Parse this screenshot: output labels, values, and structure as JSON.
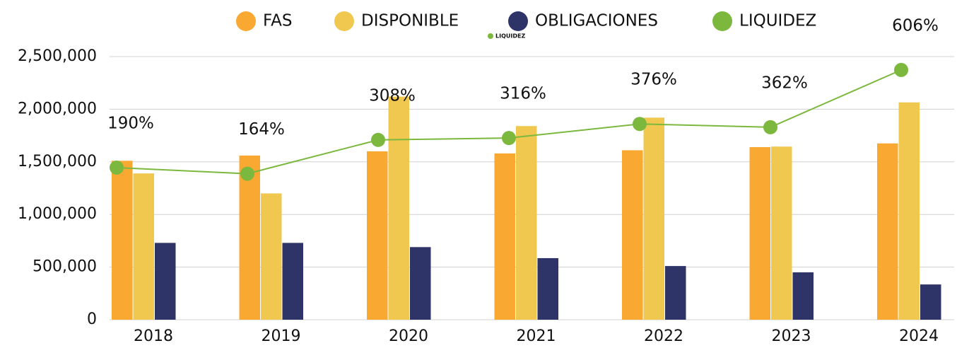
{
  "chart_data": {
    "type": "bar",
    "categories": [
      "2018",
      "2019",
      "2020",
      "2021",
      "2022",
      "2023",
      "2024"
    ],
    "series": [
      {
        "name": "FAS",
        "color": "#f9a831",
        "values": [
          1510000,
          1560000,
          1600000,
          1580000,
          1610000,
          1640000,
          1675000
        ]
      },
      {
        "name": "DISPONIBLE",
        "color": "#f0c850",
        "values": [
          1390000,
          1200000,
          2120000,
          1840000,
          1920000,
          1645000,
          2065000
        ]
      },
      {
        "name": "OBLIGACIONES",
        "color": "#2f3468",
        "values": [
          730000,
          730000,
          690000,
          585000,
          510000,
          450000,
          335000
        ]
      },
      {
        "name": "LIQUIDEZ",
        "color": "#7cb83e",
        "type": "line",
        "axis": "y2",
        "values": [
          190,
          164,
          308,
          316,
          376,
          362,
          606
        ],
        "value_labels": [
          "190%",
          "164%",
          "308%",
          "316%",
          "376%",
          "362%",
          "606%"
        ]
      }
    ],
    "small_label": "LIQUIDEZ",
    "ylim": [
      0,
      2500000
    ],
    "yticks": [
      0,
      {
        "value": 500000,
        "label": "500,000"
      },
      {
        "value": 1000000,
        "label": "1,000,000"
      },
      {
        "value": 1500000,
        "label": "1,500,000"
      },
      {
        "value": 2000000,
        "label": "2,000,000"
      },
      {
        "value": 2500000,
        "label": "2,500,000"
      }
    ],
    "y2lim": [
      -458,
      663
    ],
    "grid": true,
    "legend": "top"
  }
}
